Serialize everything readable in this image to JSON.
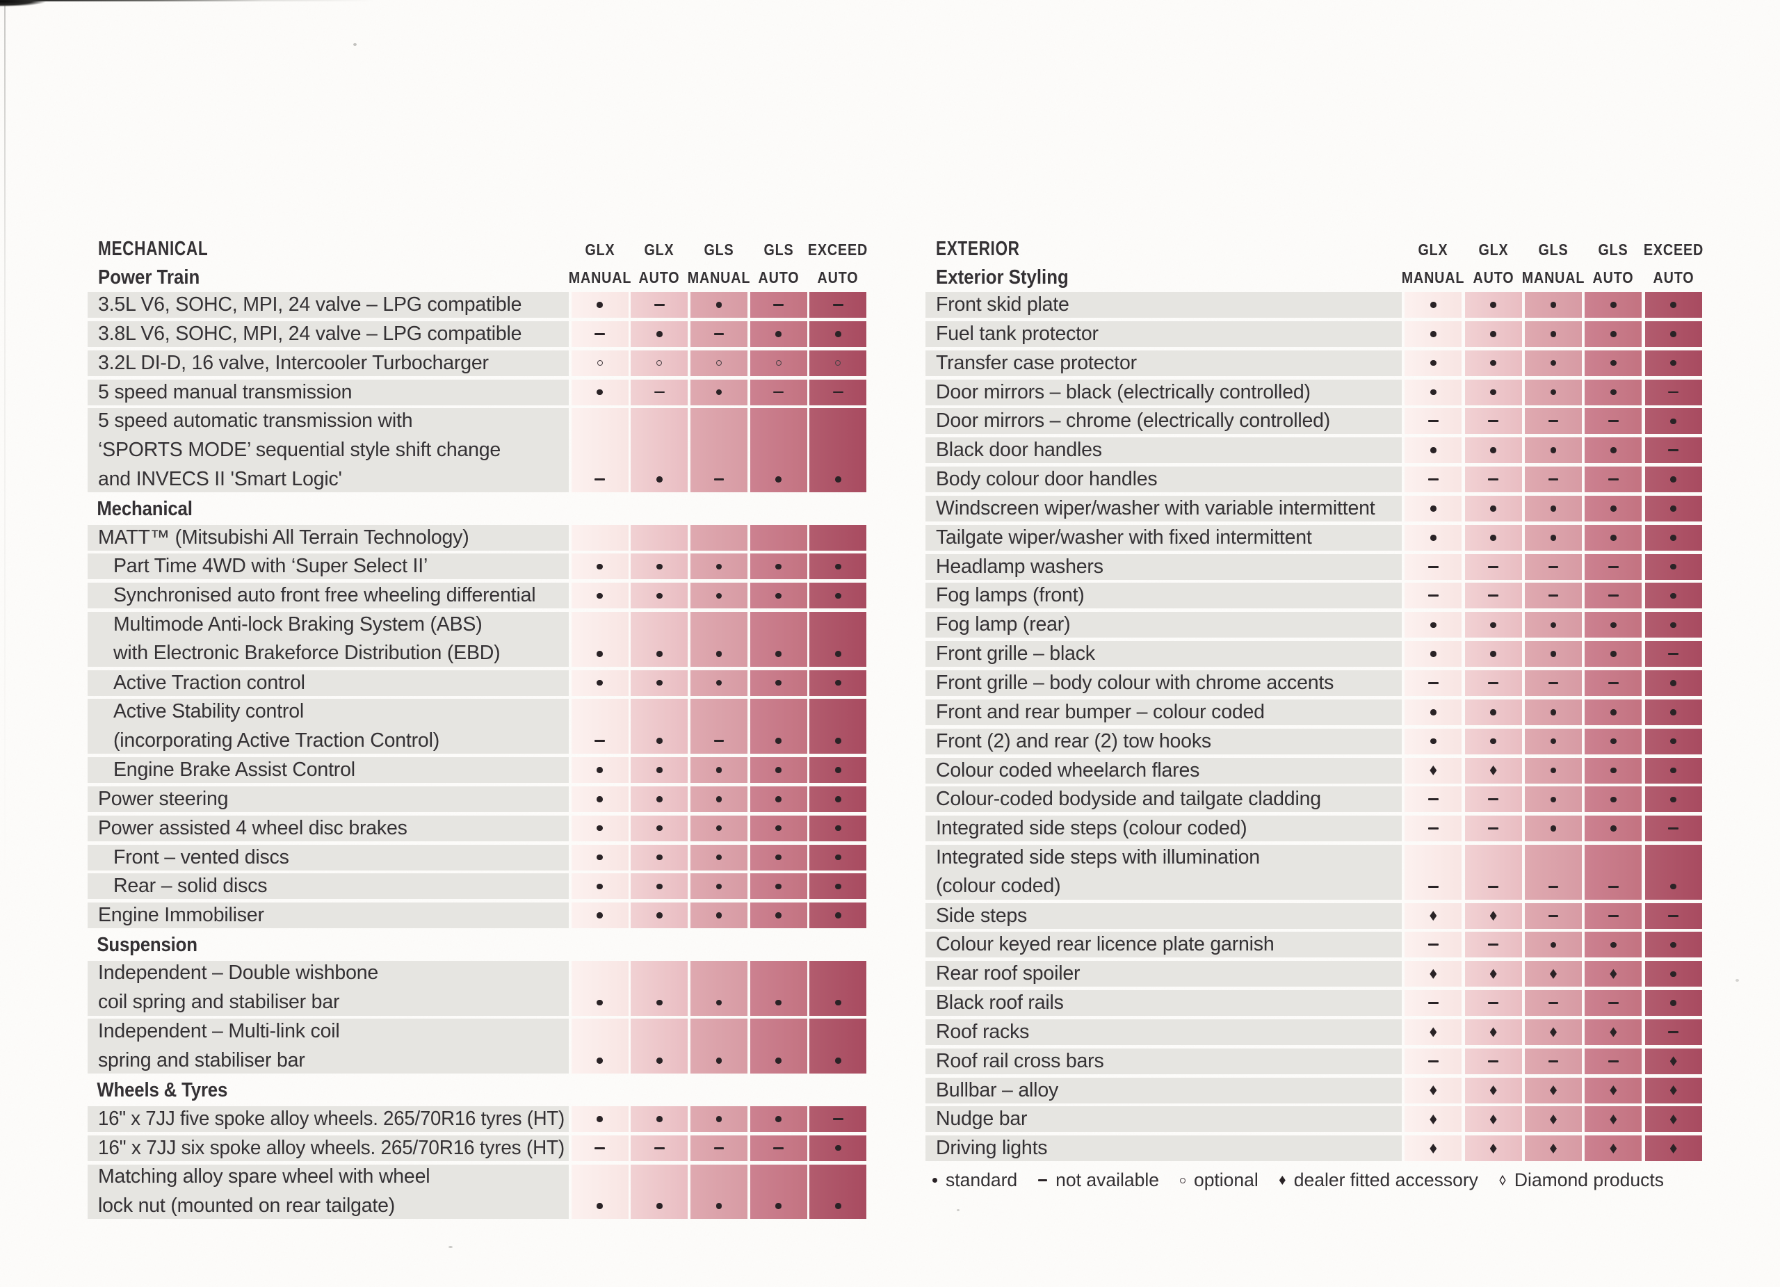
{
  "theme": {
    "page_bg": "#fdfcfa",
    "label_bg": "#e6e5e1",
    "text_color": "#343134",
    "symbol_color": "#2a2326",
    "column_gradients": [
      [
        "#fcf1ef",
        "#f8e5e3"
      ],
      [
        "#f1d1d3",
        "#e9bdc2"
      ],
      [
        "#dfa9b0",
        "#d79ba4"
      ],
      [
        "#cc8190",
        "#c37381"
      ],
      [
        "#b25c6e",
        "#a84b60"
      ]
    ]
  },
  "columns": [
    {
      "line1": "GLX",
      "line2": "MANUAL"
    },
    {
      "line1": "GLX",
      "line2": "AUTO"
    },
    {
      "line1": "GLS",
      "line2": "MANUAL"
    },
    {
      "line1": "GLS",
      "line2": "AUTO"
    },
    {
      "line1": "EXCEED",
      "line2": "AUTO"
    }
  ],
  "tables": [
    {
      "title": "MECHANICAL",
      "subtitle": "Power Train",
      "rows": [
        {
          "type": "item",
          "lines": [
            "3.5L V6, SOHC, MPI, 24 valve – LPG compatible"
          ],
          "values": [
            "dot",
            "dash",
            "dot",
            "dash",
            "dash"
          ]
        },
        {
          "type": "item",
          "lines": [
            "3.8L V6, SOHC, MPI, 24 valve – LPG compatible"
          ],
          "values": [
            "dash",
            "dot",
            "dash",
            "dot",
            "dot"
          ]
        },
        {
          "type": "item",
          "lines": [
            "3.2L DI-D, 16 valve, Intercooler Turbocharger"
          ],
          "values": [
            "circle",
            "circle",
            "circle",
            "circle",
            "circle"
          ]
        },
        {
          "type": "item",
          "lines": [
            "5 speed manual transmission"
          ],
          "values": [
            "dot",
            "dash",
            "dot",
            "dash",
            "dash"
          ]
        },
        {
          "type": "item",
          "lines": [
            "5 speed automatic transmission with",
            "‘SPORTS MODE’ sequential style shift change",
            "and INVECS II 'Smart Logic'"
          ],
          "values": [
            "dash",
            "dot",
            "dash",
            "dot",
            "dot"
          ]
        },
        {
          "type": "section",
          "label": "Mechanical"
        },
        {
          "type": "item",
          "lines": [
            "MATT™ (Mitsubishi All Terrain Technology)"
          ],
          "values": [
            "none",
            "none",
            "none",
            "none",
            "none"
          ]
        },
        {
          "type": "item",
          "indent": true,
          "lines": [
            "Part Time 4WD with ‘Super Select II’"
          ],
          "values": [
            "dot",
            "dot",
            "dot",
            "dot",
            "dot"
          ]
        },
        {
          "type": "item",
          "indent": true,
          "lines": [
            "Synchronised auto front free wheeling differential"
          ],
          "values": [
            "dot",
            "dot",
            "dot",
            "dot",
            "dot"
          ]
        },
        {
          "type": "item",
          "indent": true,
          "lines": [
            "Multimode Anti-lock Braking System (ABS)",
            "with Electronic Brakeforce Distribution (EBD)"
          ],
          "values": [
            "dot",
            "dot",
            "dot",
            "dot",
            "dot"
          ]
        },
        {
          "type": "item",
          "indent": true,
          "lines": [
            "Active Traction control"
          ],
          "values": [
            "dot",
            "dot",
            "dot",
            "dot",
            "dot"
          ]
        },
        {
          "type": "item",
          "indent": true,
          "lines": [
            "Active Stability control",
            "(incorporating Active Traction Control)"
          ],
          "values": [
            "dash",
            "dot",
            "dash",
            "dot",
            "dot"
          ]
        },
        {
          "type": "item",
          "indent": true,
          "lines": [
            "Engine Brake Assist Control"
          ],
          "values": [
            "dot",
            "dot",
            "dot",
            "dot",
            "dot"
          ]
        },
        {
          "type": "item",
          "lines": [
            "Power steering"
          ],
          "values": [
            "dot",
            "dot",
            "dot",
            "dot",
            "dot"
          ]
        },
        {
          "type": "item",
          "lines": [
            "Power assisted 4 wheel disc brakes"
          ],
          "values": [
            "dot",
            "dot",
            "dot",
            "dot",
            "dot"
          ]
        },
        {
          "type": "item",
          "indent": true,
          "lines": [
            "Front – vented discs"
          ],
          "values": [
            "dot",
            "dot",
            "dot",
            "dot",
            "dot"
          ]
        },
        {
          "type": "item",
          "indent": true,
          "lines": [
            "Rear – solid discs"
          ],
          "values": [
            "dot",
            "dot",
            "dot",
            "dot",
            "dot"
          ]
        },
        {
          "type": "item",
          "lines": [
            "Engine Immobiliser"
          ],
          "values": [
            "dot",
            "dot",
            "dot",
            "dot",
            "dot"
          ]
        },
        {
          "type": "section",
          "label": "Suspension"
        },
        {
          "type": "item",
          "lines": [
            "Independent – Double wishbone",
            "coil spring and stabiliser bar"
          ],
          "values": [
            "dot",
            "dot",
            "dot",
            "dot",
            "dot"
          ]
        },
        {
          "type": "item",
          "lines": [
            "Independent – Multi-link coil",
            "spring and stabiliser bar"
          ],
          "values": [
            "dot",
            "dot",
            "dot",
            "dot",
            "dot"
          ]
        },
        {
          "type": "section",
          "label": "Wheels & Tyres"
        },
        {
          "type": "item",
          "lines": [
            "16\" x 7JJ five spoke alloy wheels. 265/70R16 tyres (HT)"
          ],
          "values": [
            "dot",
            "dot",
            "dot",
            "dot",
            "dash"
          ]
        },
        {
          "type": "item",
          "lines": [
            "16\" x 7JJ six spoke alloy wheels. 265/70R16 tyres (HT)"
          ],
          "values": [
            "dash",
            "dash",
            "dash",
            "dash",
            "dot"
          ]
        },
        {
          "type": "item",
          "lines": [
            "Matching alloy spare wheel with wheel",
            "lock nut (mounted on rear tailgate)"
          ],
          "values": [
            "dot",
            "dot",
            "dot",
            "dot",
            "dot"
          ]
        }
      ]
    },
    {
      "title": "EXTERIOR",
      "subtitle": "Exterior Styling",
      "rows": [
        {
          "type": "item",
          "lines": [
            "Front skid plate"
          ],
          "values": [
            "dot",
            "dot",
            "dot",
            "dot",
            "dot"
          ]
        },
        {
          "type": "item",
          "lines": [
            "Fuel tank protector"
          ],
          "values": [
            "dot",
            "dot",
            "dot",
            "dot",
            "dot"
          ]
        },
        {
          "type": "item",
          "lines": [
            "Transfer case protector"
          ],
          "values": [
            "dot",
            "dot",
            "dot",
            "dot",
            "dot"
          ]
        },
        {
          "type": "item",
          "lines": [
            "Door mirrors – black (electrically controlled)"
          ],
          "values": [
            "dot",
            "dot",
            "dot",
            "dot",
            "dash"
          ]
        },
        {
          "type": "item",
          "lines": [
            "Door mirrors – chrome (electrically controlled)"
          ],
          "values": [
            "dash",
            "dash",
            "dash",
            "dash",
            "dot"
          ]
        },
        {
          "type": "item",
          "lines": [
            "Black door handles"
          ],
          "values": [
            "dot",
            "dot",
            "dot",
            "dot",
            "dash"
          ]
        },
        {
          "type": "item",
          "lines": [
            "Body colour door handles"
          ],
          "values": [
            "dash",
            "dash",
            "dash",
            "dash",
            "dot"
          ]
        },
        {
          "type": "item",
          "lines": [
            "Windscreen wiper/washer with variable intermittent"
          ],
          "values": [
            "dot",
            "dot",
            "dot",
            "dot",
            "dot"
          ]
        },
        {
          "type": "item",
          "lines": [
            "Tailgate wiper/washer with fixed intermittent"
          ],
          "values": [
            "dot",
            "dot",
            "dot",
            "dot",
            "dot"
          ]
        },
        {
          "type": "item",
          "lines": [
            "Headlamp washers"
          ],
          "values": [
            "dash",
            "dash",
            "dash",
            "dash",
            "dot"
          ]
        },
        {
          "type": "item",
          "lines": [
            "Fog lamps (front)"
          ],
          "values": [
            "dash",
            "dash",
            "dash",
            "dash",
            "dot"
          ]
        },
        {
          "type": "item",
          "lines": [
            "Fog lamp (rear)"
          ],
          "values": [
            "dot",
            "dot",
            "dot",
            "dot",
            "dot"
          ]
        },
        {
          "type": "item",
          "lines": [
            "Front grille – black"
          ],
          "values": [
            "dot",
            "dot",
            "dot",
            "dot",
            "dash"
          ]
        },
        {
          "type": "item",
          "lines": [
            "Front grille – body colour with chrome accents"
          ],
          "values": [
            "dash",
            "dash",
            "dash",
            "dash",
            "dot"
          ]
        },
        {
          "type": "item",
          "lines": [
            "Front and rear bumper – colour coded"
          ],
          "values": [
            "dot",
            "dot",
            "dot",
            "dot",
            "dot"
          ]
        },
        {
          "type": "item",
          "lines": [
            "Front (2) and rear (2) tow hooks"
          ],
          "values": [
            "dot",
            "dot",
            "dot",
            "dot",
            "dot"
          ]
        },
        {
          "type": "item",
          "lines": [
            "Colour coded wheelarch flares"
          ],
          "values": [
            "diamond",
            "diamond",
            "dot",
            "dot",
            "dot"
          ]
        },
        {
          "type": "item",
          "lines": [
            "Colour-coded bodyside and tailgate cladding"
          ],
          "values": [
            "dash",
            "dash",
            "dot",
            "dot",
            "dot"
          ]
        },
        {
          "type": "item",
          "lines": [
            "Integrated side steps (colour coded)"
          ],
          "values": [
            "dash",
            "dash",
            "dot",
            "dot",
            "dash"
          ]
        },
        {
          "type": "item",
          "lines": [
            "Integrated side steps with illumination",
            "(colour coded)"
          ],
          "values": [
            "dash",
            "dash",
            "dash",
            "dash",
            "dot"
          ]
        },
        {
          "type": "item",
          "lines": [
            "Side steps"
          ],
          "values": [
            "diamond",
            "diamond",
            "dash",
            "dash",
            "dash"
          ]
        },
        {
          "type": "item",
          "lines": [
            "Colour keyed rear licence plate garnish"
          ],
          "values": [
            "dash",
            "dash",
            "dot",
            "dot",
            "dot"
          ]
        },
        {
          "type": "item",
          "lines": [
            "Rear roof spoiler"
          ],
          "values": [
            "diamond",
            "diamond",
            "diamond",
            "diamond",
            "dot"
          ]
        },
        {
          "type": "item",
          "lines": [
            "Black roof rails"
          ],
          "values": [
            "dash",
            "dash",
            "dash",
            "dash",
            "dot"
          ]
        },
        {
          "type": "item",
          "lines": [
            "Roof racks"
          ],
          "values": [
            "diamond",
            "diamond",
            "diamond",
            "diamond",
            "dash"
          ]
        },
        {
          "type": "item",
          "lines": [
            "Roof rail cross bars"
          ],
          "values": [
            "dash",
            "dash",
            "dash",
            "dash",
            "diamond"
          ]
        },
        {
          "type": "item",
          "lines": [
            "Bullbar – alloy"
          ],
          "values": [
            "diamond",
            "diamond",
            "diamond",
            "diamond",
            "diamond"
          ]
        },
        {
          "type": "item",
          "lines": [
            "Nudge bar"
          ],
          "values": [
            "diamond",
            "diamond",
            "diamond",
            "diamond",
            "diamond"
          ]
        },
        {
          "type": "item",
          "lines": [
            "Driving lights"
          ],
          "values": [
            "diamond",
            "diamond",
            "diamond",
            "diamond",
            "diamond"
          ]
        }
      ]
    }
  ],
  "legend": {
    "items": [
      {
        "symbol": "dot",
        "label": "standard"
      },
      {
        "symbol": "dash",
        "label": "not available"
      },
      {
        "symbol": "circle",
        "label": "optional"
      },
      {
        "symbol": "diamond",
        "label": "dealer fitted accessory"
      },
      {
        "symbol": "odiamond",
        "label": "Diamond products"
      }
    ]
  }
}
